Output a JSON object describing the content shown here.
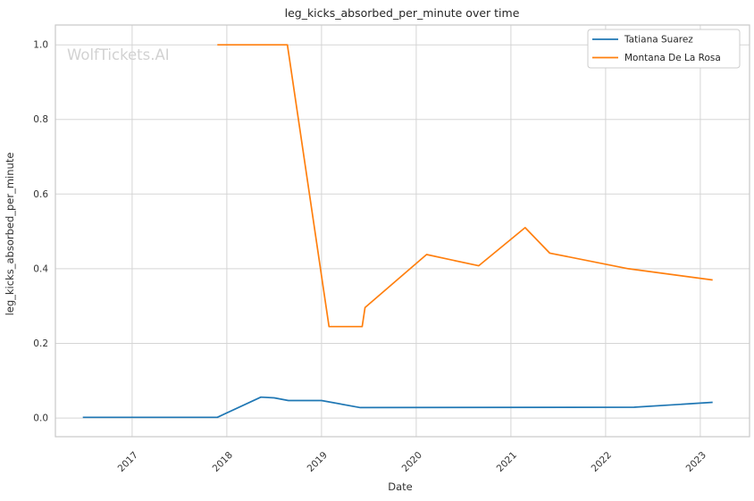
{
  "watermark": "WolfTickets.AI",
  "chart_data": {
    "type": "line",
    "title": "leg_kicks_absorbed_per_minute over time",
    "xlabel": "Date",
    "ylabel": "leg_kicks_absorbed_per_minute",
    "xlim": [
      2016.19,
      2023.52
    ],
    "ylim": [
      -0.05,
      1.053
    ],
    "grid": true,
    "legend_position": "upper right",
    "x_ticks": [
      2017,
      2018,
      2019,
      2020,
      2021,
      2022,
      2023
    ],
    "x_tick_labels": [
      "2017",
      "2018",
      "2019",
      "2020",
      "2021",
      "2022",
      "2023"
    ],
    "y_ticks": [
      0.0,
      0.2,
      0.4,
      0.6,
      0.8,
      1.0
    ],
    "y_tick_labels": [
      "0.0",
      "0.2",
      "0.4",
      "0.6",
      "0.8",
      "1.0"
    ],
    "series": [
      {
        "name": "Tatiana Suarez",
        "color": "#1f77b4",
        "x": [
          2016.48,
          2017.9,
          2018.36,
          2018.5,
          2018.65,
          2019.0,
          2019.41,
          2022.3,
          2023.13
        ],
        "y": [
          0.002,
          0.002,
          0.056,
          0.054,
          0.047,
          0.047,
          0.028,
          0.029,
          0.042
        ]
      },
      {
        "name": "Montana De La Rosa",
        "color": "#ff7f0e",
        "x": [
          2017.9,
          2018.64,
          2019.08,
          2019.43,
          2019.46,
          2020.11,
          2020.66,
          2021.15,
          2021.41,
          2022.24,
          2023.13
        ],
        "y": [
          1.0,
          1.0,
          0.245,
          0.245,
          0.296,
          0.438,
          0.408,
          0.51,
          0.442,
          0.4,
          0.37
        ]
      }
    ]
  }
}
